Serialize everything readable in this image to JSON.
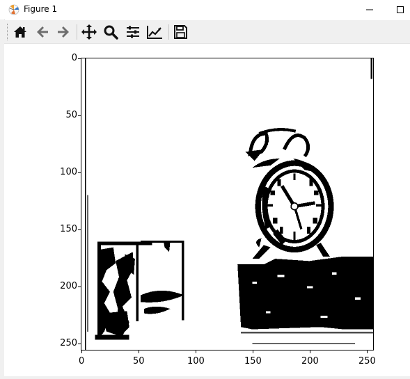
{
  "window": {
    "title": "Figure 1",
    "minimize_symbol": "—",
    "maximize_symbol": "☐"
  },
  "toolbar": {
    "buttons": [
      {
        "name": "home",
        "icon": "home-icon"
      },
      {
        "name": "back",
        "icon": "arrow-left-icon"
      },
      {
        "name": "forward",
        "icon": "arrow-right-icon"
      },
      {
        "name": "pan",
        "icon": "move-icon"
      },
      {
        "name": "zoom",
        "icon": "magnifier-icon"
      },
      {
        "name": "configure-subplots",
        "icon": "sliders-icon"
      },
      {
        "name": "edit-axis",
        "icon": "line-chart-icon"
      },
      {
        "name": "save",
        "icon": "floppy-disk-icon"
      }
    ]
  },
  "plot": {
    "image_content": "binary black-and-white image of an alarm clock and a box",
    "x_ticks": [
      "0",
      "50",
      "100",
      "150",
      "200",
      "250"
    ],
    "y_ticks": [
      "0",
      "50",
      "100",
      "150",
      "200",
      "250"
    ],
    "x_range": [
      0,
      256
    ],
    "y_range": [
      0,
      256
    ]
  },
  "colors": {
    "toolbar_bg": "#f0f0f0",
    "ink": "#000000",
    "paper": "#ffffff"
  }
}
